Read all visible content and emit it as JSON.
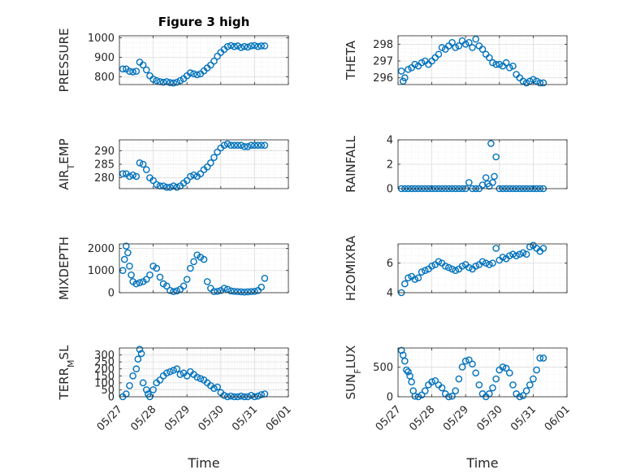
{
  "figure_title": "Figure 3 high",
  "chart_data": [
    {
      "type": "scatter",
      "ylabel": "PRESSURE",
      "ylabel_sub": "",
      "ylabel_after": "",
      "yticks": [
        800,
        900,
        1000
      ],
      "ylim": [
        760,
        1010
      ],
      "xlim": [
        0,
        5
      ],
      "grid": true,
      "marker": "circle",
      "color": "#0072BD",
      "series": [
        {
          "x": [
            0.1,
            0.2,
            0.3,
            0.4,
            0.5,
            0.6,
            0.7,
            0.8,
            0.9,
            1.0,
            1.1,
            1.2,
            1.3,
            1.4,
            1.5,
            1.6,
            1.7,
            1.8,
            1.9,
            2.0,
            2.1,
            2.2,
            2.3,
            2.4,
            2.5,
            2.6,
            2.7,
            2.8,
            2.9,
            3.0,
            3.1,
            3.2,
            3.3,
            3.4,
            3.5,
            3.6,
            3.7,
            3.8,
            3.9,
            4.0,
            4.1,
            4.2,
            4.3
          ],
          "y": [
            840,
            840,
            828,
            825,
            828,
            875,
            860,
            835,
            805,
            788,
            780,
            775,
            772,
            775,
            770,
            768,
            772,
            780,
            790,
            805,
            820,
            815,
            810,
            815,
            830,
            845,
            860,
            880,
            905,
            925,
            940,
            955,
            960,
            955,
            958,
            950,
            955,
            952,
            958,
            960,
            955,
            958,
            958
          ]
        }
      ]
    },
    {
      "type": "scatter",
      "ylabel": "THETA",
      "ylabel_sub": "",
      "ylabel_after": "",
      "yticks": [
        296,
        297,
        298
      ],
      "ylim": [
        295.6,
        298.5
      ],
      "xlim": [
        0,
        5
      ],
      "grid": true,
      "marker": "circle",
      "color": "#0072BD",
      "series": [
        {
          "x": [
            0.1,
            0.15,
            0.2,
            0.3,
            0.4,
            0.5,
            0.6,
            0.7,
            0.8,
            0.9,
            1.0,
            1.1,
            1.2,
            1.3,
            1.4,
            1.5,
            1.6,
            1.7,
            1.8,
            1.9,
            2.0,
            2.1,
            2.2,
            2.3,
            2.4,
            2.5,
            2.6,
            2.7,
            2.8,
            2.9,
            3.0,
            3.1,
            3.2,
            3.3,
            3.4,
            3.5,
            3.6,
            3.7,
            3.8,
            3.9,
            4.0,
            4.1,
            4.2,
            4.3
          ],
          "y": [
            296.4,
            295.8,
            296.0,
            296.5,
            296.6,
            296.8,
            296.7,
            296.9,
            297.0,
            296.8,
            297.0,
            297.2,
            297.4,
            297.8,
            297.7,
            297.9,
            298.1,
            297.8,
            297.9,
            298.2,
            298.0,
            298.1,
            297.8,
            298.3,
            297.9,
            297.7,
            297.4,
            297.2,
            296.9,
            296.8,
            296.8,
            296.7,
            296.9,
            296.6,
            296.7,
            296.2,
            296.0,
            295.8,
            295.7,
            295.8,
            295.9,
            295.8,
            295.7,
            295.7
          ]
        }
      ]
    },
    {
      "type": "scatter",
      "ylabel": "AIR",
      "ylabel_sub": "T",
      "ylabel_after": "EMP",
      "yticks": [
        280,
        285,
        290
      ],
      "ylim": [
        276,
        294
      ],
      "xlim": [
        0,
        5
      ],
      "grid": true,
      "marker": "circle",
      "color": "#0072BD",
      "series": [
        {
          "x": [
            0.1,
            0.2,
            0.3,
            0.4,
            0.5,
            0.6,
            0.7,
            0.8,
            0.9,
            1.0,
            1.1,
            1.2,
            1.3,
            1.4,
            1.5,
            1.6,
            1.7,
            1.8,
            1.9,
            2.0,
            2.1,
            2.2,
            2.3,
            2.4,
            2.5,
            2.6,
            2.7,
            2.8,
            2.9,
            3.0,
            3.1,
            3.2,
            3.3,
            3.4,
            3.5,
            3.6,
            3.7,
            3.8,
            3.9,
            4.0,
            4.1,
            4.2,
            4.3
          ],
          "y": [
            281.5,
            281.5,
            280.5,
            281,
            280.5,
            285.5,
            285,
            283,
            280,
            279,
            277.5,
            277,
            277,
            276.5,
            276.5,
            277,
            276.5,
            277,
            278,
            279,
            280.5,
            281,
            280.5,
            281.5,
            283,
            284,
            285.5,
            287.5,
            289.5,
            291,
            292,
            292.5,
            292,
            292,
            292,
            292,
            291.5,
            291.5,
            292,
            292,
            292,
            292,
            292
          ]
        }
      ]
    },
    {
      "type": "scatter",
      "ylabel": "RAINFALL",
      "ylabel_sub": "",
      "ylabel_after": "",
      "yticks": [
        0,
        2,
        4
      ],
      "ylim": [
        0,
        4
      ],
      "xlim": [
        0,
        5
      ],
      "grid": true,
      "marker": "circle",
      "color": "#0072BD",
      "series": [
        {
          "x": [
            0.1,
            0.2,
            0.3,
            0.4,
            0.5,
            0.6,
            0.7,
            0.8,
            0.9,
            1.0,
            1.1,
            1.2,
            1.3,
            1.4,
            1.5,
            1.6,
            1.7,
            1.8,
            1.9,
            2.0,
            2.1,
            2.2,
            2.3,
            2.4,
            2.5,
            2.6,
            2.65,
            2.7,
            2.75,
            2.8,
            2.85,
            2.9,
            3.0,
            3.1,
            3.2,
            3.3,
            3.4,
            3.5,
            3.6,
            3.7,
            3.8,
            3.9,
            4.0,
            4.1,
            4.2,
            4.3
          ],
          "y": [
            0,
            0,
            0,
            0,
            0,
            0,
            0,
            0,
            0,
            0,
            0,
            0,
            0,
            0,
            0,
            0,
            0,
            0,
            0,
            0,
            0.5,
            0,
            0,
            0,
            0.3,
            0.9,
            0.4,
            0.2,
            3.7,
            0.5,
            1.0,
            2.6,
            0,
            0,
            0,
            0,
            0,
            0,
            0,
            0,
            0,
            0,
            0,
            0,
            0,
            0
          ]
        }
      ]
    },
    {
      "type": "scatter",
      "ylabel": "MIXDEPTH",
      "ylabel_sub": "",
      "ylabel_after": "",
      "yticks": [
        0,
        1000,
        2000
      ],
      "ylim": [
        0,
        2200
      ],
      "xlim": [
        0,
        5
      ],
      "grid": true,
      "marker": "circle",
      "color": "#0072BD",
      "series": [
        {
          "x": [
            0.1,
            0.15,
            0.2,
            0.25,
            0.3,
            0.35,
            0.4,
            0.5,
            0.6,
            0.7,
            0.8,
            0.9,
            1.0,
            1.1,
            1.2,
            1.3,
            1.4,
            1.5,
            1.6,
            1.7,
            1.8,
            1.9,
            2.0,
            2.1,
            2.2,
            2.3,
            2.4,
            2.5,
            2.6,
            2.7,
            2.8,
            2.9,
            3.0,
            3.1,
            3.2,
            3.3,
            3.4,
            3.5,
            3.6,
            3.7,
            3.8,
            3.9,
            4.0,
            4.1,
            4.2,
            4.3
          ],
          "y": [
            1000,
            1500,
            2100,
            1800,
            1200,
            800,
            500,
            400,
            450,
            500,
            600,
            800,
            1200,
            1100,
            700,
            400,
            300,
            100,
            50,
            80,
            150,
            300,
            600,
            1100,
            1400,
            1700,
            1600,
            1500,
            500,
            200,
            50,
            60,
            100,
            200,
            150,
            80,
            60,
            50,
            40,
            30,
            40,
            50,
            60,
            100,
            250,
            650
          ]
        }
      ]
    },
    {
      "type": "scatter",
      "ylabel": "H2OMIXRA",
      "ylabel_sub": "",
      "ylabel_after": "",
      "yticks": [
        4,
        6
      ],
      "ylim": [
        4,
        7.3
      ],
      "xlim": [
        0,
        5
      ],
      "grid": true,
      "marker": "circle",
      "color": "#0072BD",
      "series": [
        {
          "x": [
            0.1,
            0.2,
            0.3,
            0.4,
            0.5,
            0.6,
            0.7,
            0.8,
            0.9,
            1.0,
            1.1,
            1.2,
            1.3,
            1.4,
            1.5,
            1.6,
            1.7,
            1.8,
            1.9,
            2.0,
            2.1,
            2.2,
            2.3,
            2.4,
            2.5,
            2.6,
            2.7,
            2.8,
            2.9,
            3.0,
            3.1,
            3.2,
            3.3,
            3.4,
            3.5,
            3.6,
            3.7,
            3.8,
            3.9,
            4.0,
            4.1,
            4.2,
            4.3
          ],
          "y": [
            4.0,
            4.6,
            5.0,
            5.1,
            4.9,
            5.0,
            5.4,
            5.5,
            5.6,
            5.8,
            5.9,
            6.1,
            6.0,
            5.8,
            5.7,
            5.6,
            5.5,
            5.6,
            5.8,
            5.9,
            5.7,
            5.6,
            5.8,
            5.9,
            6.1,
            6.0,
            5.9,
            6.0,
            7.0,
            6.2,
            6.4,
            6.3,
            6.5,
            6.6,
            6.5,
            6.6,
            6.7,
            6.6,
            7.1,
            7.2,
            7.0,
            6.8,
            7.0
          ]
        }
      ]
    },
    {
      "type": "scatter",
      "ylabel": "TERR",
      "ylabel_sub": "M",
      "ylabel_after": "SL",
      "yticks": [
        0,
        50,
        100,
        150,
        200,
        250,
        300
      ],
      "ylim": [
        0,
        350
      ],
      "xlim": [
        0,
        5
      ],
      "grid": true,
      "marker": "circle",
      "color": "#0072BD",
      "series": [
        {
          "x": [
            0.1,
            0.2,
            0.3,
            0.4,
            0.5,
            0.55,
            0.6,
            0.65,
            0.7,
            0.8,
            0.85,
            0.9,
            1.0,
            1.1,
            1.2,
            1.3,
            1.4,
            1.5,
            1.6,
            1.7,
            1.8,
            1.9,
            2.0,
            2.1,
            2.2,
            2.3,
            2.4,
            2.5,
            2.6,
            2.7,
            2.8,
            2.9,
            3.0,
            3.1,
            3.2,
            3.3,
            3.4,
            3.5,
            3.6,
            3.7,
            3.8,
            3.9,
            4.0,
            4.1,
            4.2,
            4.3
          ],
          "y": [
            0,
            20,
            80,
            150,
            200,
            270,
            340,
            310,
            100,
            50,
            20,
            0,
            50,
            100,
            120,
            150,
            170,
            180,
            190,
            200,
            160,
            170,
            150,
            180,
            160,
            140,
            130,
            120,
            100,
            80,
            60,
            70,
            30,
            10,
            0,
            5,
            0,
            0,
            5,
            0,
            0,
            10,
            0,
            5,
            15,
            20
          ]
        }
      ]
    },
    {
      "type": "scatter",
      "ylabel": "SUN",
      "ylabel_sub": "F",
      "ylabel_after": "LUX",
      "yticks": [
        0,
        500
      ],
      "ylim": [
        0,
        820
      ],
      "xlim": [
        0,
        5
      ],
      "grid": true,
      "marker": "circle",
      "color": "#0072BD",
      "series": [
        {
          "x": [
            0.1,
            0.15,
            0.2,
            0.25,
            0.3,
            0.35,
            0.4,
            0.45,
            0.5,
            0.6,
            0.7,
            0.8,
            0.9,
            1.0,
            1.1,
            1.2,
            1.3,
            1.4,
            1.5,
            1.6,
            1.7,
            1.8,
            1.9,
            2.0,
            2.1,
            2.2,
            2.3,
            2.4,
            2.5,
            2.6,
            2.7,
            2.8,
            2.9,
            3.0,
            3.1,
            3.2,
            3.3,
            3.4,
            3.5,
            3.6,
            3.7,
            3.8,
            3.9,
            4.0,
            4.1,
            4.2,
            4.3
          ],
          "y": [
            780,
            700,
            600,
            450,
            420,
            350,
            250,
            100,
            10,
            0,
            30,
            100,
            200,
            250,
            270,
            200,
            150,
            50,
            0,
            10,
            100,
            300,
            500,
            600,
            620,
            550,
            400,
            200,
            50,
            0,
            50,
            150,
            300,
            450,
            500,
            480,
            400,
            200,
            50,
            0,
            20,
            100,
            200,
            300,
            450,
            650,
            650
          ]
        }
      ]
    }
  ],
  "xticks": [
    "05/27",
    "05/28",
    "05/29",
    "05/30",
    "05/31",
    "06/01"
  ],
  "xlabel": "Time"
}
